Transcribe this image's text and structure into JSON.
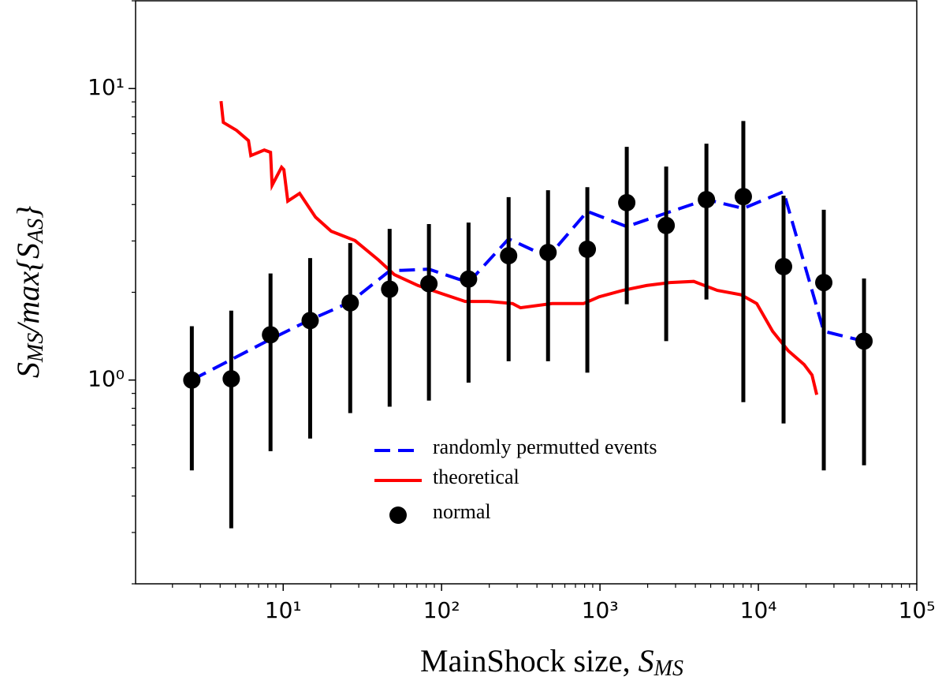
{
  "chart_data": {
    "type": "line",
    "x_label": {
      "text": "MainShock size, ",
      "symbol": "S",
      "subscript": "MS"
    },
    "y_label": [
      {
        "text": "S",
        "sub": "MS"
      },
      {
        "text": "/max{S",
        "sub": "AS"
      },
      {
        "text": "}",
        "sub": ""
      }
    ],
    "xscale": "log",
    "yscale": "log",
    "xlim": [
      1.17,
      100000
    ],
    "ylim": [
      0.2,
      20
    ],
    "xticks": [
      {
        "value": 10,
        "label": "10¹"
      },
      {
        "value": 100,
        "label": "10²"
      },
      {
        "value": 1000,
        "label": "10³"
      },
      {
        "value": 10000,
        "label": "10⁴"
      },
      {
        "value": 100000,
        "label": "10⁵"
      }
    ],
    "yticks": [
      {
        "value": 1,
        "label": "10⁰"
      },
      {
        "value": 10,
        "label": "10¹"
      }
    ],
    "legend": "lower center",
    "series": [
      {
        "name": "randomly permutted events",
        "color": "#0000ff",
        "style": "dashed",
        "x": [
          2.65,
          8.32,
          14.8,
          26.5,
          47.0,
          83.2,
          148,
          265,
          470,
          832,
          1476,
          2618,
          4699,
          8035,
          14420,
          25880,
          46450
        ],
        "values": [
          1.0,
          1.38,
          1.61,
          1.85,
          2.37,
          2.4,
          2.16,
          3.05,
          2.64,
          3.79,
          3.36,
          3.74,
          4.16,
          3.88,
          4.43,
          1.47,
          1.36
        ]
      },
      {
        "name": "theoretical",
        "color": "#ff0000",
        "style": "solid",
        "x": [
          4.05,
          4.19,
          5.08,
          6.04,
          6.25,
          7.6,
          8.32,
          8.51,
          9.77,
          10.1,
          10.7,
          12.7,
          16.0,
          20.1,
          28.4,
          40.0,
          50.3,
          71.0,
          100,
          141,
          199,
          281,
          315,
          498,
          787,
          989,
          1394,
          1968,
          2775,
          3911,
          5510,
          7780,
          9770,
          12300,
          15450,
          19450,
          21800,
          23350
        ],
        "values": [
          9.05,
          7.65,
          7.19,
          6.63,
          5.89,
          6.15,
          6.04,
          4.66,
          5.37,
          5.27,
          4.11,
          4.37,
          3.62,
          3.24,
          3.01,
          2.58,
          2.3,
          2.11,
          1.98,
          1.86,
          1.86,
          1.83,
          1.77,
          1.83,
          1.83,
          1.93,
          2.03,
          2.11,
          2.16,
          2.18,
          2.03,
          1.96,
          1.83,
          1.47,
          1.26,
          1.13,
          1.04,
          0.89
        ]
      },
      {
        "name": "normal",
        "color": "#000000",
        "style": "errorbar",
        "x": [
          2.65,
          4.7,
          8.32,
          14.8,
          26.5,
          47.0,
          83.2,
          148,
          265,
          470,
          832,
          1476,
          2618,
          4699,
          8035,
          14420,
          25880,
          46450
        ],
        "values": [
          1.0,
          1.01,
          1.43,
          1.6,
          1.84,
          2.05,
          2.14,
          2.22,
          2.67,
          2.74,
          2.81,
          4.06,
          3.39,
          4.16,
          4.26,
          2.45,
          2.16,
          1.36
        ],
        "lower": [
          0.49,
          0.31,
          0.57,
          0.63,
          0.77,
          0.81,
          0.85,
          0.98,
          1.16,
          1.16,
          1.06,
          1.82,
          1.36,
          1.89,
          0.84,
          0.71,
          0.49,
          0.51
        ],
        "upper": [
          1.53,
          1.73,
          2.32,
          2.62,
          2.95,
          3.3,
          3.43,
          3.47,
          4.24,
          4.48,
          4.59,
          6.31,
          5.4,
          6.47,
          7.74,
          4.29,
          3.84,
          2.23
        ]
      }
    ]
  }
}
